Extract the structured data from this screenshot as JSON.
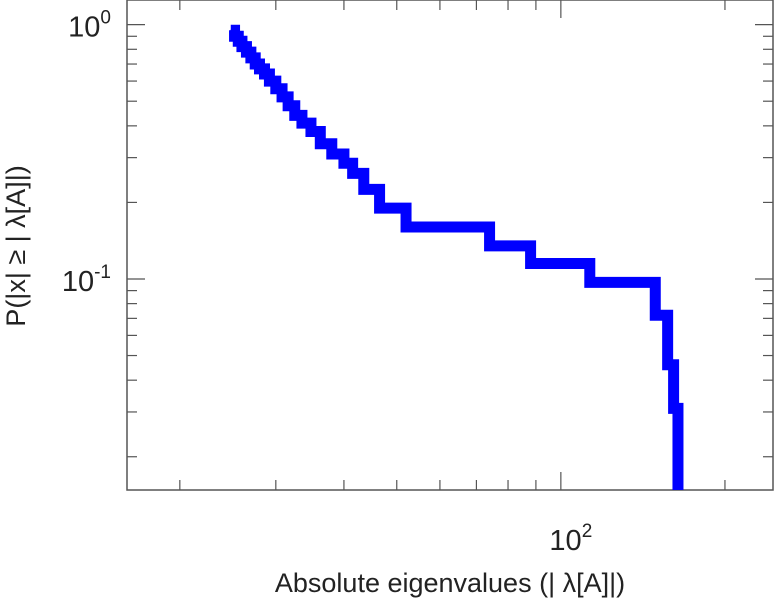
{
  "chart_data": {
    "type": "line",
    "title": "",
    "xlabel": "Absolute eigenvalues (|     λ[A]|)",
    "ylabel": "P(|x|  ≥ | λ[A]|)",
    "xscale": "log",
    "yscale": "log",
    "xlim": [
      16,
      245
    ],
    "ylim": [
      0.0148,
      1.25
    ],
    "grid": false,
    "legend": "none",
    "x_ticklabels": [
      {
        "value": 100,
        "mantissa": "10",
        "exponent": "2"
      }
    ],
    "y_ticklabels": [
      {
        "value": 1,
        "mantissa": "10",
        "exponent": "0"
      },
      {
        "value": 0.1,
        "mantissa": "10",
        "exponent": "-1"
      }
    ],
    "series": [
      {
        "color": "#0000ff",
        "step": "post",
        "x": [
          24.8,
          25.2,
          25.6,
          26.0,
          26.5,
          27.0,
          27.5,
          28.0,
          28.6,
          29.2,
          30.0,
          30.8,
          31.6,
          32.5,
          33.5,
          34.8,
          36.2,
          38.0,
          40.0,
          41.5,
          43.5,
          46.5,
          52.0,
          74.0,
          88.0,
          113.0,
          149.0,
          157.0,
          161.0
        ],
        "y": [
          0.95,
          0.9,
          0.86,
          0.82,
          0.78,
          0.74,
          0.7,
          0.67,
          0.64,
          0.6,
          0.56,
          0.52,
          0.48,
          0.44,
          0.41,
          0.38,
          0.34,
          0.31,
          0.285,
          0.26,
          0.225,
          0.19,
          0.16,
          0.135,
          0.115,
          0.097,
          0.072,
          0.046,
          0.031
        ],
        "x_end": 164.0,
        "y_end": 0.0148
      }
    ]
  }
}
